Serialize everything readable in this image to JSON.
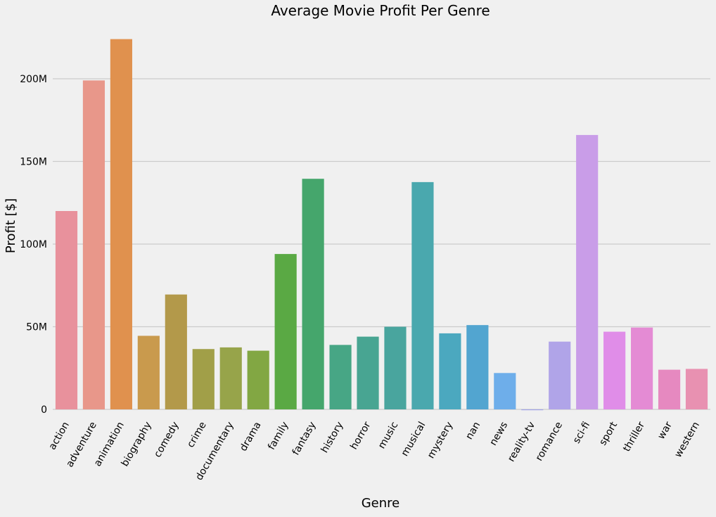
{
  "chart_data": {
    "type": "bar",
    "title": "Average Movie Profit Per Genre",
    "xlabel": "Genre",
    "ylabel": "Profit [$]",
    "categories": [
      "action",
      "adventure",
      "animation",
      "biography",
      "comedy",
      "crime",
      "documentary",
      "drama",
      "family",
      "fantasy",
      "history",
      "horror",
      "music",
      "musical",
      "mystery",
      "nan",
      "news",
      "reality-tv",
      "romance",
      "sci-fi",
      "sport",
      "thriller",
      "war",
      "western"
    ],
    "values": [
      120000000,
      199000000,
      224000000,
      44500000,
      69500000,
      36500000,
      37500000,
      35500000,
      94000000,
      139500000,
      39000000,
      44000000,
      50000000,
      137500000,
      46000000,
      51000000,
      22000000,
      -500000,
      41000000,
      166000000,
      47000000,
      49500000,
      24000000,
      24500000
    ],
    "colors": [
      "#e8919c",
      "#e8978a",
      "#e0914e",
      "#c99a4d",
      "#b3994a",
      "#a19f48",
      "#97a44a",
      "#82a743",
      "#5aa944",
      "#45a66c",
      "#47a685",
      "#48a592",
      "#49a59e",
      "#4aa8ae",
      "#4ba8bf",
      "#52a5d0",
      "#6eaeea",
      "#a0a4e8",
      "#b0a4e8",
      "#c99de8",
      "#e08de8",
      "#e48bd4",
      "#e689c0",
      "#e891b1"
    ],
    "yticks": [
      0,
      50000000,
      100000000,
      150000000,
      200000000
    ],
    "ytick_labels": [
      "0",
      "50M",
      "100M",
      "150M",
      "200M"
    ],
    "ylim": [
      -3000000,
      230000000
    ],
    "grid": "horizontal",
    "background": "#f0f0f0",
    "grid_color": "#cbcbcb"
  }
}
